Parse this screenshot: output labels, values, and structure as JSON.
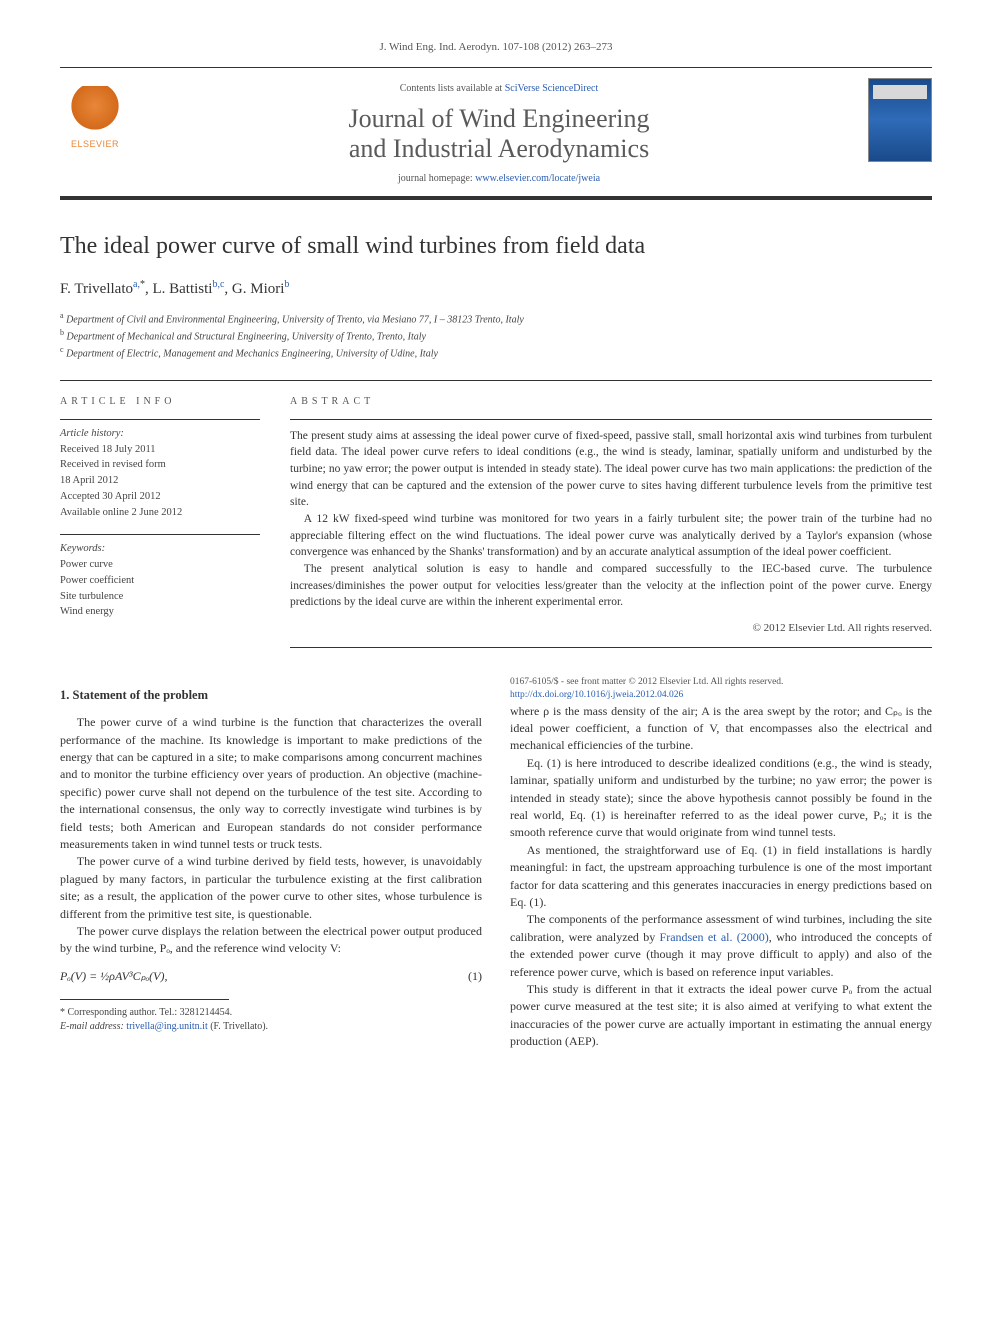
{
  "journal_ref": "J. Wind Eng. Ind. Aerodyn. 107-108 (2012) 263–273",
  "header": {
    "contents_prefix": "Contents lists available at ",
    "contents_link": "SciVerse ScienceDirect",
    "journal_name_l1": "Journal of Wind Engineering",
    "journal_name_l2": "and Industrial Aerodynamics",
    "homepage_prefix": "journal homepage: ",
    "homepage_link": "www.elsevier.com/locate/jweia",
    "publisher": "ELSEVIER"
  },
  "title": "The ideal power curve of small wind turbines from field data",
  "authors": {
    "a1_name": "F. Trivellato",
    "a1_sup": "a,",
    "a1_star": "*",
    "a2_name": "L. Battisti",
    "a2_sup": "b,c",
    "a3_name": "G. Miori",
    "a3_sup": "b"
  },
  "affiliations": {
    "a": "Department of Civil and Environmental Engineering, University of Trento, via Mesiano 77, I – 38123 Trento, Italy",
    "b": "Department of Mechanical and Structural Engineering, University of Trento, Trento, Italy",
    "c": "Department of Electric, Management and Mechanics Engineering, University of Udine, Italy"
  },
  "article_info": {
    "label": "ARTICLE INFO",
    "history_label": "Article history:",
    "received": "Received 18 July 2011",
    "revised_l1": "Received in revised form",
    "revised_l2": "18 April 2012",
    "accepted": "Accepted 30 April 2012",
    "online": "Available online 2 June 2012",
    "keywords_label": "Keywords:",
    "kw1": "Power curve",
    "kw2": "Power coefficient",
    "kw3": "Site turbulence",
    "kw4": "Wind energy"
  },
  "abstract": {
    "label": "ABSTRACT",
    "p1": "The present study aims at assessing the ideal power curve of fixed-speed, passive stall, small horizontal axis wind turbines from turbulent field data. The ideal power curve refers to ideal conditions (e.g., the wind is steady, laminar, spatially uniform and undisturbed by the turbine; no yaw error; the power output is intended in steady state). The ideal power curve has two main applications: the prediction of the wind energy that can be captured and the extension of the power curve to sites having different turbulence levels from the primitive test site.",
    "p2": "A 12 kW fixed-speed wind turbine was monitored for two years in a fairly turbulent site; the power train of the turbine had no appreciable filtering effect on the wind fluctuations. The ideal power curve was analytically derived by a Taylor's expansion (whose convergence was enhanced by the Shanks' transformation) and by an accurate analytical assumption of the ideal power coefficient.",
    "p3": "The present analytical solution is easy to handle and compared successfully to the IEC-based curve. The turbulence increases/diminishes the power output for velocities less/greater than the velocity at the inflection point of the power curve. Energy predictions by the ideal curve are within the inherent experimental error.",
    "copyright": "© 2012 Elsevier Ltd. All rights reserved."
  },
  "body": {
    "h1": "1.  Statement of the problem",
    "p1": "The power curve of a wind turbine is the function that characterizes the overall performance of the machine. Its knowledge is important to make predictions of the energy that can be captured in a site; to make comparisons among concurrent machines and to monitor the turbine efficiency over years of production. An objective (machine-specific) power curve shall not depend on the turbulence of the test site. According to the international consensus, the only way to correctly investigate wind turbines is by field tests; both American and European standards do not consider performance measurements taken in wind tunnel tests or truck tests.",
    "p2": "The power curve of a wind turbine derived by field tests, however, is unavoidably plagued by many factors, in particular the turbulence existing at the first calibration site; as a result, the application of the power curve to other sites, whose turbulence is different from the primitive test site, is questionable.",
    "p3": "The power curve displays the relation between the electrical power output produced by the wind turbine, Pₒ, and the reference wind velocity V:",
    "eq1": "Pₒ(V) = ½ρAV³Cₚₒ(V),",
    "eq1_num": "(1)",
    "p4": "where ρ is the mass density of the air; A is the area swept by the rotor; and Cₚₒ is the ideal power coefficient, a function of V, that encompasses also the electrical and mechanical efficiencies of the turbine.",
    "p5": "Eq. (1) is here introduced to describe idealized conditions (e.g., the wind is steady, laminar, spatially uniform and undisturbed by the turbine; no yaw error; the power is intended in steady state); since the above hypothesis cannot possibly be found in the real world, Eq. (1) is hereinafter referred to as the ideal power curve, Pₒ; it is the smooth reference curve that would originate from wind tunnel tests.",
    "p6": "As mentioned, the straightforward use of Eq. (1) in field installations is hardly meaningful: in fact, the upstream approaching turbulence is one of the most important factor for data scattering and this generates inaccuracies in energy predictions based on Eq. (1).",
    "p7a": "The components of the performance assessment of wind turbines, including the site calibration, were analyzed by ",
    "p7_cite": "Frandsen et al. (2000)",
    "p7b": ", who introduced the concepts of the extended power curve (though it may prove difficult to apply) and also of the reference power curve, which is based on reference input variables.",
    "p8": "This study is different in that it extracts the ideal power curve Pₒ from the actual power curve measured at the test site; it is also aimed at verifying to what extent the inaccuracies of the power curve are actually important in estimating the annual energy production (AEP)."
  },
  "footnotes": {
    "corr_label": "* Corresponding author. Tel.: 3281214454.",
    "email_label": "E-mail address: ",
    "email": "trivella@ing.unitn.it",
    "email_suffix": " (F. Trivellato)."
  },
  "bottom": {
    "line1": "0167-6105/$ - see front matter © 2012 Elsevier Ltd. All rights reserved.",
    "doi": "http://dx.doi.org/10.1016/j.jweia.2012.04.026"
  },
  "colors": {
    "link": "#2a5db0",
    "text": "#333333",
    "muted": "#555555",
    "elsevier_orange": "#e8873a"
  }
}
